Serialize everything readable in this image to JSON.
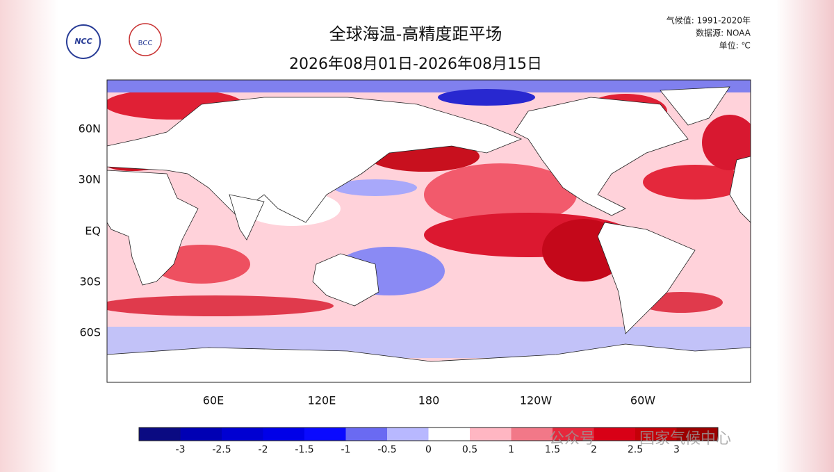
{
  "header": {
    "title": "全球海温-高精度距平场",
    "subtitle": "2026年08月01日-2026年08月15日",
    "logo_left": "NCC",
    "logo_right": "BCC"
  },
  "notes": [
    "气候值: 1991-2020年",
    "数据源: NOAA",
    "单位: ℃"
  ],
  "map": {
    "lat_labels": [
      "60N",
      "30N",
      "EQ",
      "30S",
      "60S"
    ],
    "lon_labels": [
      "60E",
      "120E",
      "180",
      "120W",
      "60W"
    ]
  },
  "colorbar": {
    "ticks": [
      -3,
      -2.5,
      -2,
      -1.5,
      -1,
      -0.5,
      0,
      0.5,
      1,
      1.5,
      2,
      2.5,
      3
    ],
    "colors": [
      "#0a0a82",
      "#0000b4",
      "#0000d2",
      "#0000e8",
      "#0a0aff",
      "#6a6af2",
      "#b8b8ff",
      "#ffffff",
      "#ffb6c2",
      "#f27888",
      "#e6283c",
      "#d80016",
      "#c40008",
      "#9c0000"
    ]
  },
  "watermark": {
    "account": "公众号",
    "name": "国家气候中心"
  }
}
